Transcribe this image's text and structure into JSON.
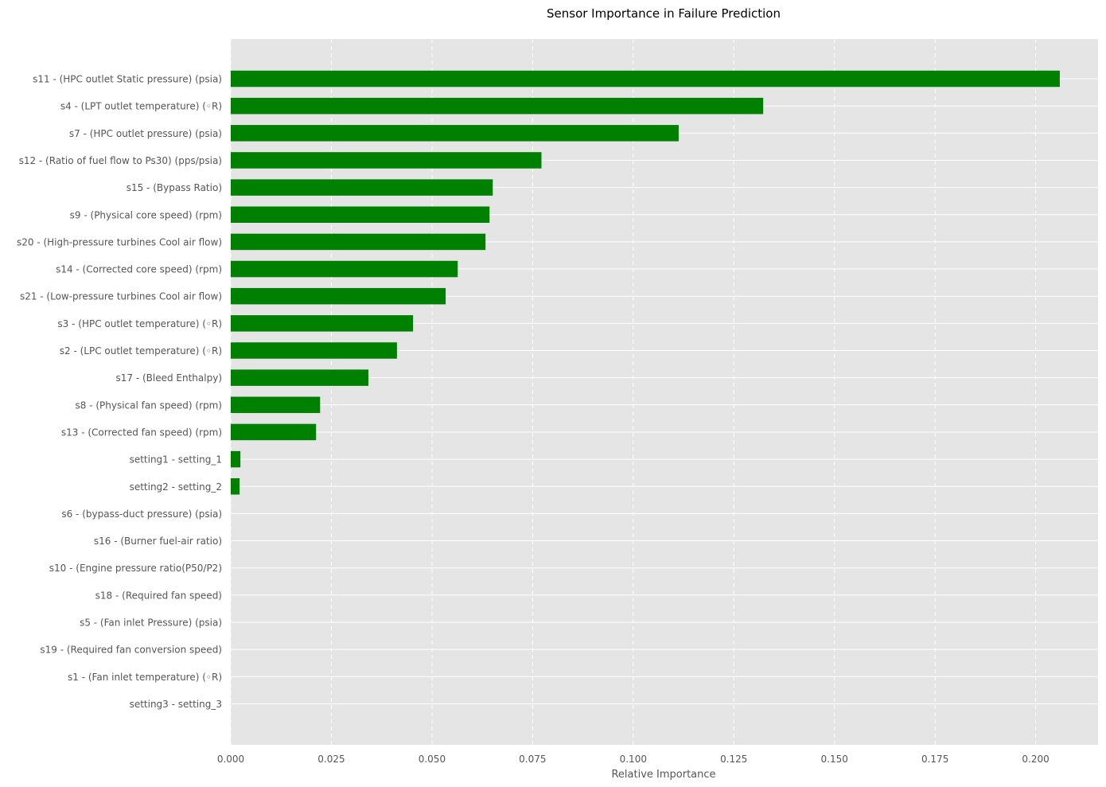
{
  "chart_data": {
    "type": "bar",
    "orientation": "horizontal",
    "title": "Sensor Importance in Failure Prediction",
    "xlabel": "Relative Importance",
    "ylabel": "",
    "xlim": [
      0,
      0.2155
    ],
    "xticks": [
      "0.000",
      "0.025",
      "0.050",
      "0.075",
      "0.100",
      "0.125",
      "0.150",
      "0.175",
      "0.200"
    ],
    "xtick_values": [
      0,
      0.025,
      0.05,
      0.075,
      0.1,
      0.125,
      0.15,
      0.175,
      0.2
    ],
    "grid": true,
    "bar_color": "#008000",
    "background_color": "#e5e5e5",
    "categories": [
      "s11 - (HPC outlet Static pressure) (psia)",
      "s4 - (LPT outlet temperature) (◦R)",
      "s7 - (HPC outlet pressure) (psia)",
      "s12 - (Ratio of fuel flow to Ps30) (pps/psia)",
      "s15 - (Bypass Ratio)",
      "s9 - (Physical core speed) (rpm)",
      "s20 - (High-pressure turbines Cool air flow)",
      "s14 - (Corrected core speed) (rpm)",
      "s21 - (Low-pressure turbines Cool air flow)",
      "s3 - (HPC outlet temperature) (◦R)",
      "s2 - (LPC outlet temperature) (◦R)",
      "s17 - (Bleed Enthalpy)",
      "s8 - (Physical fan speed) (rpm)",
      "s13 - (Corrected fan speed) (rpm)",
      "setting1 - setting_1",
      "setting2 - setting_2",
      "s6 - (bypass-duct pressure) (psia)",
      "s16 - (Burner fuel-air ratio)",
      "s10 - (Engine pressure ratio(P50/P2)",
      "s18 - (Required fan speed)",
      "s5 - (Fan inlet Pressure) (psia)",
      "s19 - (Required fan conversion speed)",
      "s1 - (Fan inlet temperature) (◦R)",
      "setting3 - setting_3"
    ],
    "values": [
      0.206,
      0.1323,
      0.1113,
      0.0772,
      0.0651,
      0.0643,
      0.0633,
      0.0564,
      0.0534,
      0.0453,
      0.0413,
      0.0342,
      0.0222,
      0.0212,
      0.0024,
      0.0022,
      0,
      0,
      0,
      0,
      0,
      0,
      0,
      0
    ]
  }
}
